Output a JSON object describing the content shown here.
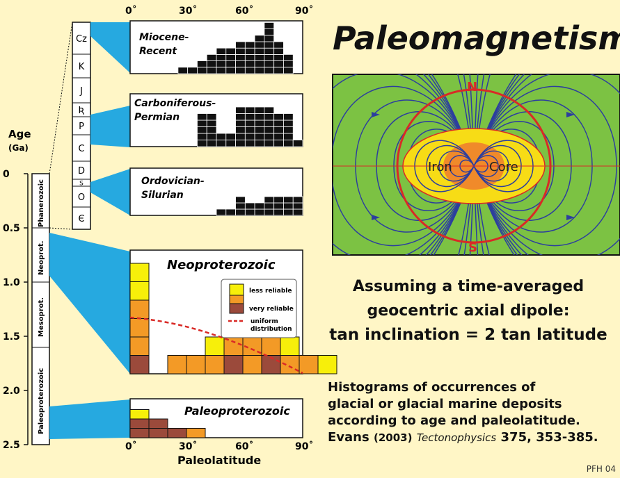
{
  "title": "Paleomagnetism",
  "age_axis": {
    "label": "Age",
    "unit": "(Ga)",
    "ticks": [
      "0",
      "0.5",
      "1.0",
      "1.5",
      "2.0",
      "2.5"
    ]
  },
  "eons": [
    "Phanerozoic",
    "Neoprot.",
    "Mesoprot.",
    "Paleoproterozoic"
  ],
  "periods": [
    "Cz",
    "K",
    "J",
    "Ʀ",
    "P",
    "C",
    "D",
    "S",
    "O",
    "Є"
  ],
  "top_axis_ticks": [
    "0˚",
    "30˚",
    "60˚",
    "90˚"
  ],
  "bottom_axis_ticks": [
    "0˚",
    "30˚",
    "60˚",
    "90˚"
  ],
  "x_axis_label": "Paleolatitude",
  "panels": {
    "miocene": "Miocene-\nRecent",
    "carboniferous": "Carboniferous-\nPermian",
    "ordovician": "Ordovician-\nSilurian",
    "neoproterozoic": "Neoproterozoic",
    "paleoproterozoic": "Paleoproterozoic"
  },
  "legend": {
    "less_reliable": "less reliable",
    "very_reliable": "very reliable",
    "uniform": "uniform\ndistribution"
  },
  "dipole": {
    "north": "N",
    "south": "S",
    "iron": "Iron",
    "core": "Core"
  },
  "assumption": [
    "Assuming a time-averaged",
    "geocentric axial dipole:",
    "tan inclination  =  2 tan latitude"
  ],
  "histogram_caption": [
    "Histograms of occurrences of",
    "glacial or glacial marine deposits",
    "according to age and paleolatitude."
  ],
  "citation": {
    "author": "Evans",
    "year": "(2003)",
    "journal": "Tectonophysics",
    "ref": "375, 353-385."
  },
  "credit": "PFH 04",
  "colors": {
    "background": "#FFF6C6",
    "less_reliable": "#F7EF0A",
    "medium": "#F39A26",
    "very_reliable": "#9B4A3B",
    "mantle_green": "#7CC243",
    "field_lines": "#2C3E9E",
    "core_yellow": "#F7DC16",
    "core_orange": "#F08A2A",
    "red": "#D92A26",
    "cyan": "#26A9E0"
  },
  "chart_data": [
    {
      "type": "bar",
      "panel": "Miocene-Recent",
      "x_bin_deg": 5,
      "values": [
        0,
        0,
        0,
        0,
        0,
        1,
        1,
        2,
        3,
        4,
        4,
        5,
        5,
        6,
        8,
        5,
        3,
        0
      ]
    },
    {
      "type": "bar",
      "panel": "Carboniferous-Permian",
      "x_bin_deg": 5,
      "values": [
        0,
        0,
        0,
        0,
        0,
        0,
        0,
        5,
        5,
        2,
        2,
        6,
        6,
        6,
        6,
        5,
        5,
        1
      ]
    },
    {
      "type": "bar",
      "panel": "Ordovician-Silurian",
      "x_bin_deg": 5,
      "values": [
        0,
        0,
        0,
        0,
        0,
        0,
        0,
        0,
        0,
        1,
        1,
        3,
        2,
        2,
        3,
        3,
        3,
        3
      ]
    },
    {
      "type": "stacked_bar",
      "panel": "Neoproterozoic",
      "x_bin_deg": 5,
      "less_reliable": [
        2,
        0,
        0,
        0,
        1,
        0,
        2,
        0,
        1,
        0,
        1,
        0,
        0,
        0,
        0,
        0,
        0,
        0
      ],
      "medium": [
        3,
        0,
        1,
        1,
        1,
        1,
        2,
        1,
        1,
        1,
        0,
        0,
        0,
        0,
        0,
        0,
        0,
        0
      ],
      "very_reliable": [
        1,
        0,
        0,
        0,
        0,
        1,
        0,
        1,
        0,
        0,
        0,
        0,
        0,
        0,
        0,
        0,
        0,
        0
      ]
    },
    {
      "type": "stacked_bar",
      "panel": "Paleoproterozoic",
      "x_bin_deg": 5,
      "less_reliable": [
        1,
        0,
        0,
        0,
        0,
        0,
        0,
        0,
        0,
        0,
        0,
        0,
        0,
        0,
        0,
        0,
        0,
        0
      ],
      "medium": [
        0,
        0,
        0,
        1,
        0,
        0,
        0,
        0,
        0,
        0,
        0,
        0,
        0,
        0,
        0,
        0,
        0,
        0
      ],
      "very_reliable": [
        2,
        2,
        1,
        0,
        0,
        0,
        0,
        0,
        0,
        0,
        0,
        0,
        0,
        0,
        0,
        0,
        0,
        0
      ]
    }
  ]
}
